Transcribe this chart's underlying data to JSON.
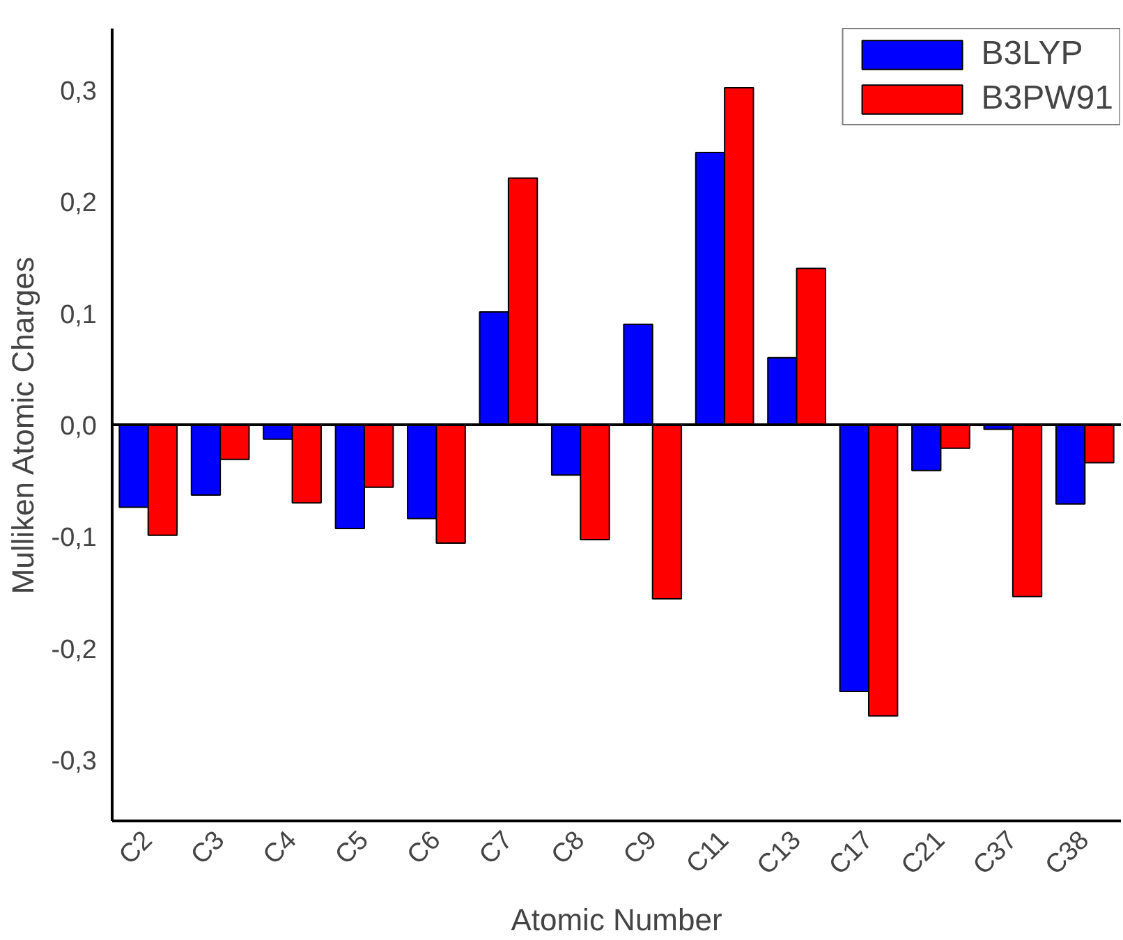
{
  "chart_data": {
    "type": "bar",
    "xlabel": "Atomic Number",
    "ylabel": "Mulliken Atomic Charges",
    "categories": [
      "C2",
      "C3",
      "C4",
      "C5",
      "C6",
      "C7",
      "C8",
      "C9",
      "C11",
      "C13",
      "C17",
      "C21",
      "C37",
      "C38"
    ],
    "series": [
      {
        "name": "B3LYP",
        "color": "#0000ff",
        "values": [
          -0.074,
          -0.063,
          -0.013,
          -0.093,
          -0.084,
          0.101,
          -0.045,
          0.09,
          0.244,
          0.06,
          -0.239,
          -0.041,
          -0.004,
          -0.071
        ]
      },
      {
        "name": "B3PW91",
        "color": "#ff0000",
        "values": [
          -0.099,
          -0.031,
          -0.07,
          -0.056,
          -0.106,
          0.221,
          -0.103,
          -0.156,
          0.302,
          0.14,
          -0.261,
          -0.021,
          -0.154,
          -0.034
        ]
      }
    ],
    "ylim": [
      -0.355,
      0.355
    ],
    "yticks": [
      {
        "value": -0.3,
        "label": "-0,3"
      },
      {
        "value": -0.2,
        "label": "-0,2"
      },
      {
        "value": -0.1,
        "label": "-0,1"
      },
      {
        "value": 0,
        "label": "0,0"
      },
      {
        "value": 0.1,
        "label": "0,1"
      },
      {
        "value": 0.2,
        "label": "0,2"
      },
      {
        "value": 0.3,
        "label": "0,3"
      }
    ],
    "ref_lines": [
      {
        "axis": "y",
        "value": 0,
        "color": "#000000"
      }
    ],
    "grid": false,
    "legend": "top right"
  }
}
